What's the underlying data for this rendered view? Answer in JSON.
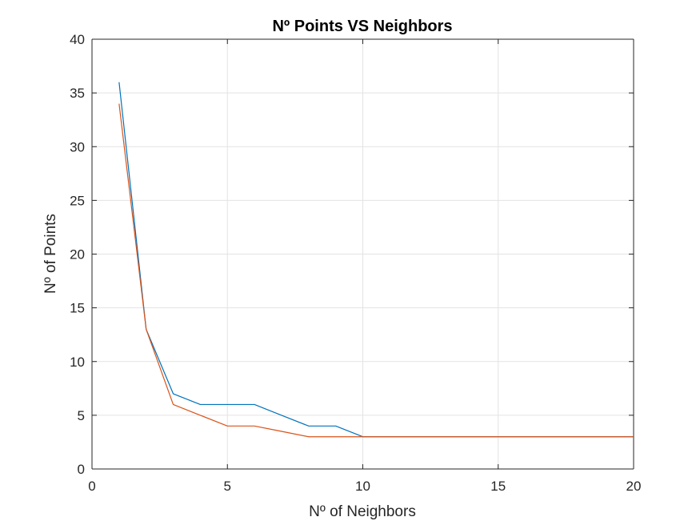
{
  "chart_data": {
    "type": "line",
    "title": "Nº Points VS Neighbors",
    "xlabel": "Nº of Neighbors",
    "ylabel": "Nº of Points",
    "xlim": [
      0,
      20
    ],
    "ylim": [
      0,
      40
    ],
    "xticks": [
      0,
      5,
      10,
      15,
      20
    ],
    "yticks": [
      0,
      5,
      10,
      15,
      20,
      25,
      30,
      35,
      40
    ],
    "grid": true,
    "legend": "none",
    "x": [
      1,
      2,
      3,
      4,
      5,
      6,
      7,
      8,
      9,
      10,
      11,
      12,
      13,
      14,
      15,
      16,
      17,
      18,
      19,
      20
    ],
    "series": [
      {
        "color": "#0072BD",
        "values": [
          36,
          13,
          7,
          6,
          6,
          6,
          5,
          4,
          4,
          3,
          3,
          3,
          3,
          3,
          3,
          3,
          3,
          3,
          3,
          3
        ]
      },
      {
        "color": "#D95319",
        "values": [
          34,
          13,
          6,
          5,
          4,
          4,
          3.5,
          3,
          3,
          3,
          3,
          3,
          3,
          3,
          3,
          3,
          3,
          3,
          3,
          3
        ]
      }
    ]
  }
}
